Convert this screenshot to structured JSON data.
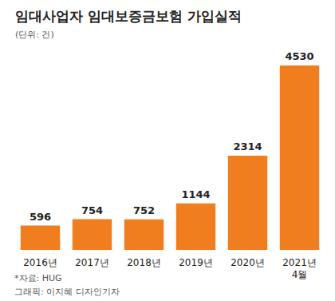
{
  "chart_data": {
    "type": "bar",
    "title": "임대사업자 임대보증금보험 가입실적",
    "subtitle": "(단위: 건)",
    "categories": [
      "2016년",
      "2017년",
      "2018년",
      "2019년",
      "2020년",
      "2021년\n4월"
    ],
    "values": [
      596,
      754,
      752,
      1144,
      2314,
      4530
    ],
    "color": "#f07d1e",
    "ylim": [
      0,
      5000
    ],
    "grid": false,
    "data_labels": true,
    "tick_labels": "x",
    "annotations": [
      "*자료: HUG",
      "그래픽: 이지혜 디자인기자"
    ]
  }
}
